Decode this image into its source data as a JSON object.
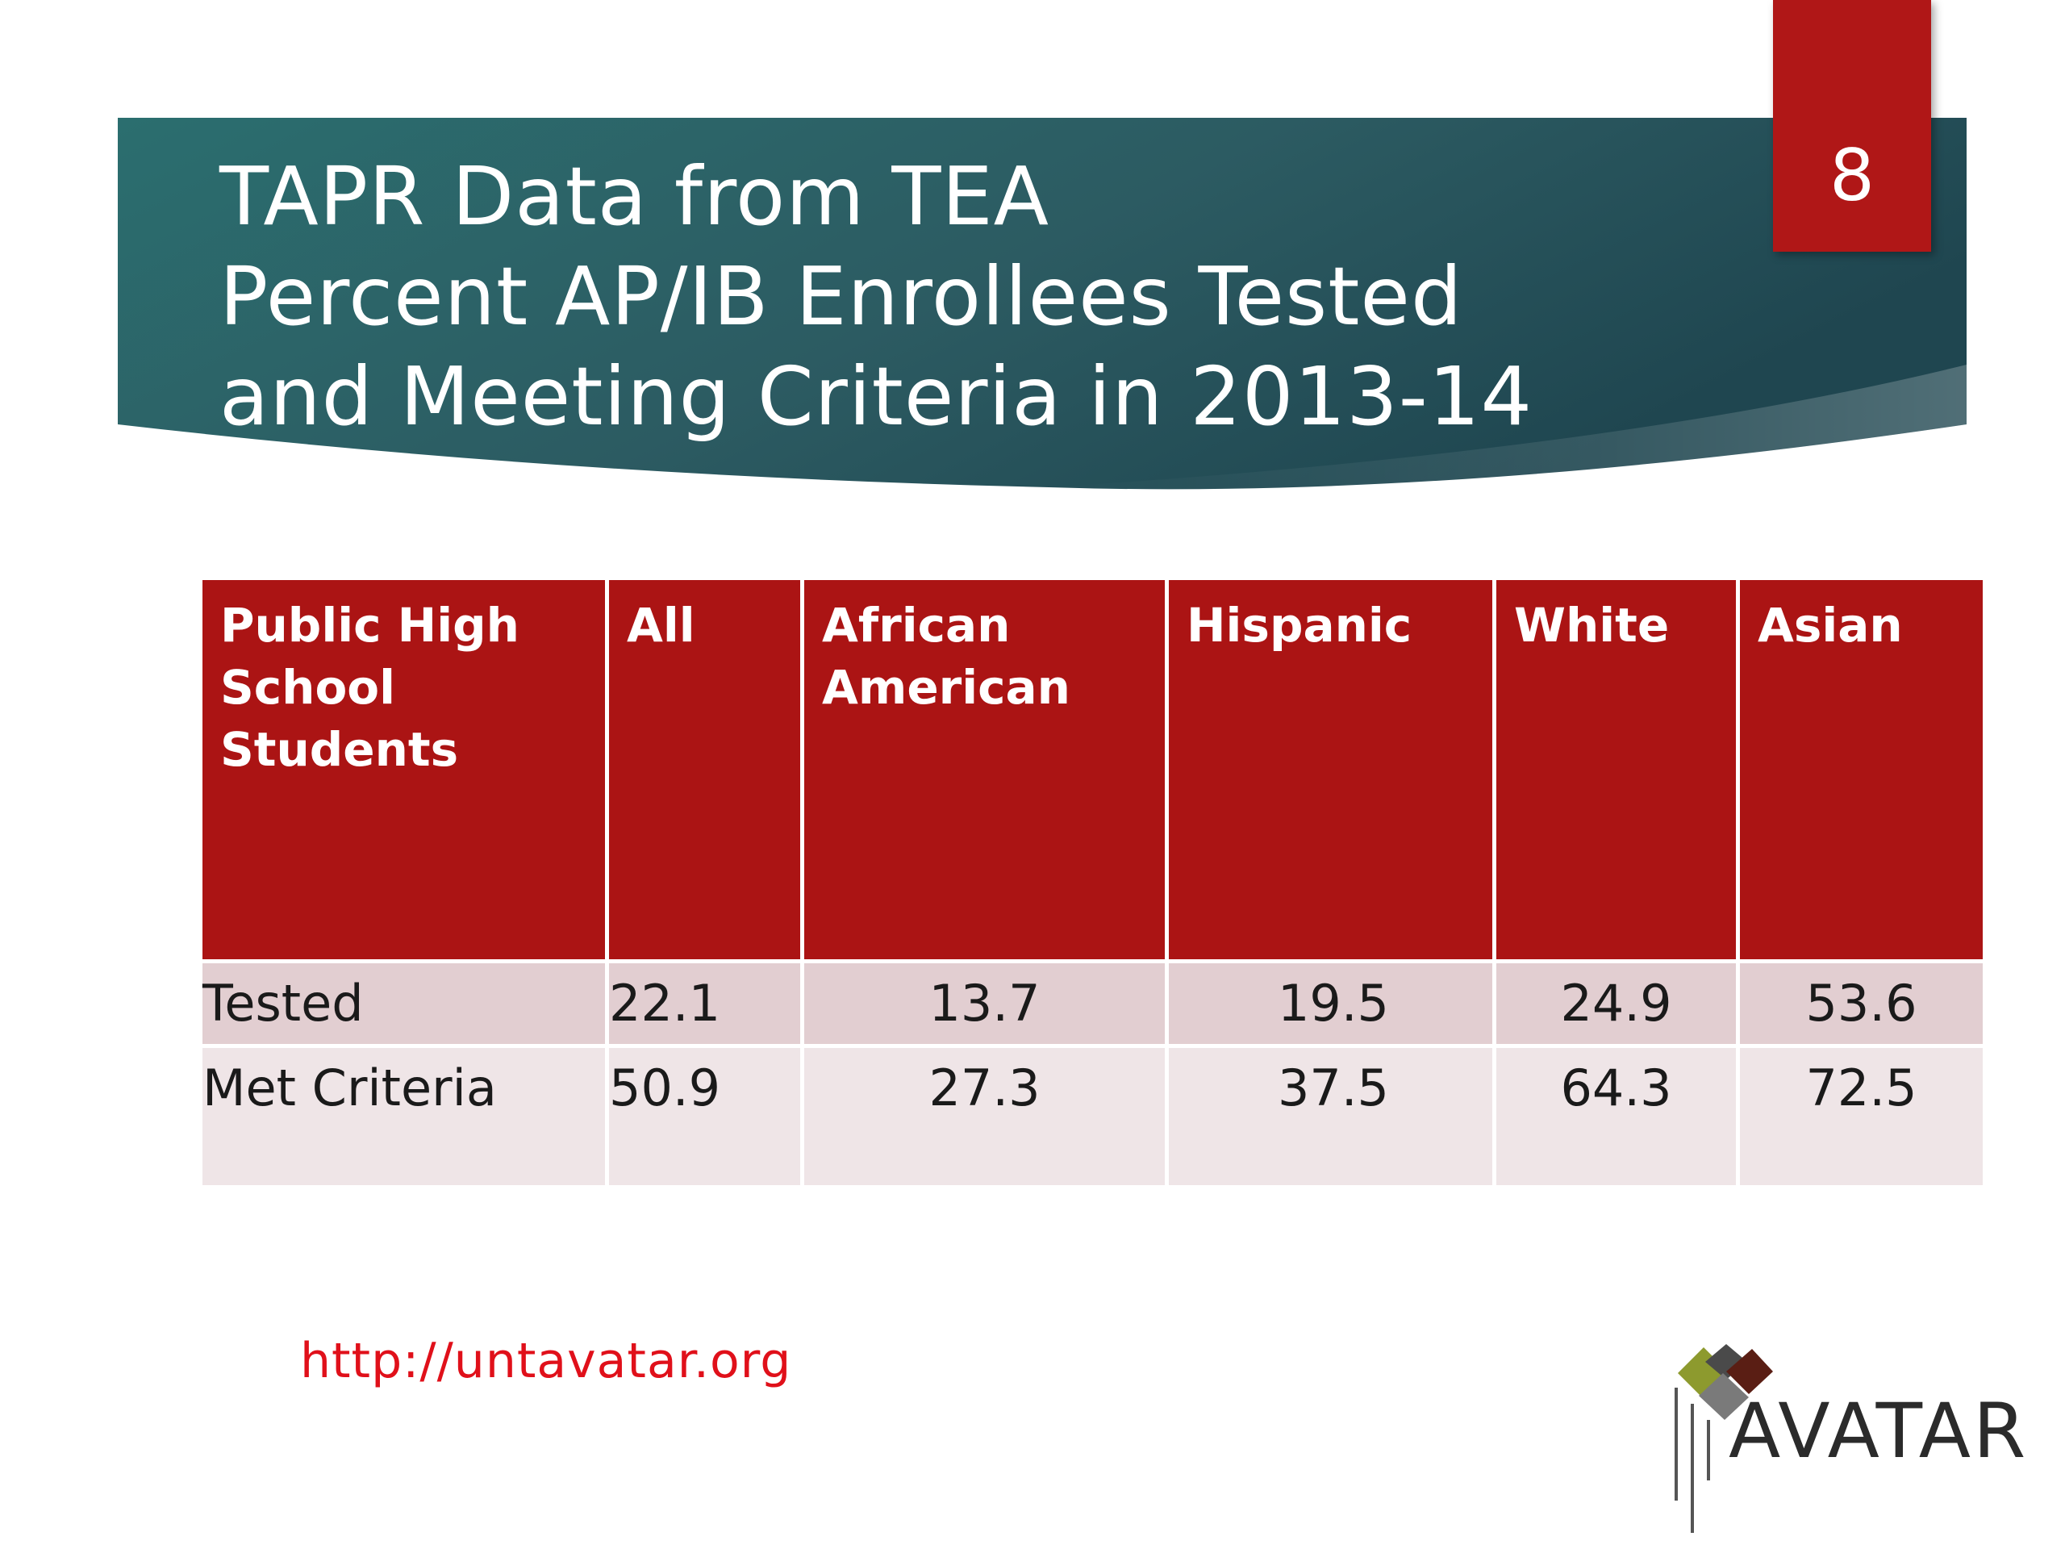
{
  "slide": {
    "number": "8",
    "title_lines": [
      "TAPR Data from TEA",
      "Percent AP/IB Enrollees Tested",
      "and Meeting Criteria in 2013-14"
    ]
  },
  "colors": {
    "banner": "#2c5e63",
    "header_red": "#ab1414",
    "row_tested": "#e2ced1",
    "row_met": "#efe5e7",
    "url_red": "#e0101a"
  },
  "table": {
    "headers": [
      "Public High School Students",
      "All",
      "African American",
      "Hispanic",
      "White",
      "Asian"
    ],
    "rows": [
      {
        "label": "Tested",
        "values": [
          "22.1",
          "13.7",
          "19.5",
          "24.9",
          "53.6"
        ]
      },
      {
        "label": "Met Criteria",
        "values": [
          "50.9",
          "27.3",
          "37.5",
          "64.3",
          "72.5"
        ]
      }
    ]
  },
  "footer": {
    "url": "http://untavatar.org",
    "logo_text": "AVATAR"
  }
}
